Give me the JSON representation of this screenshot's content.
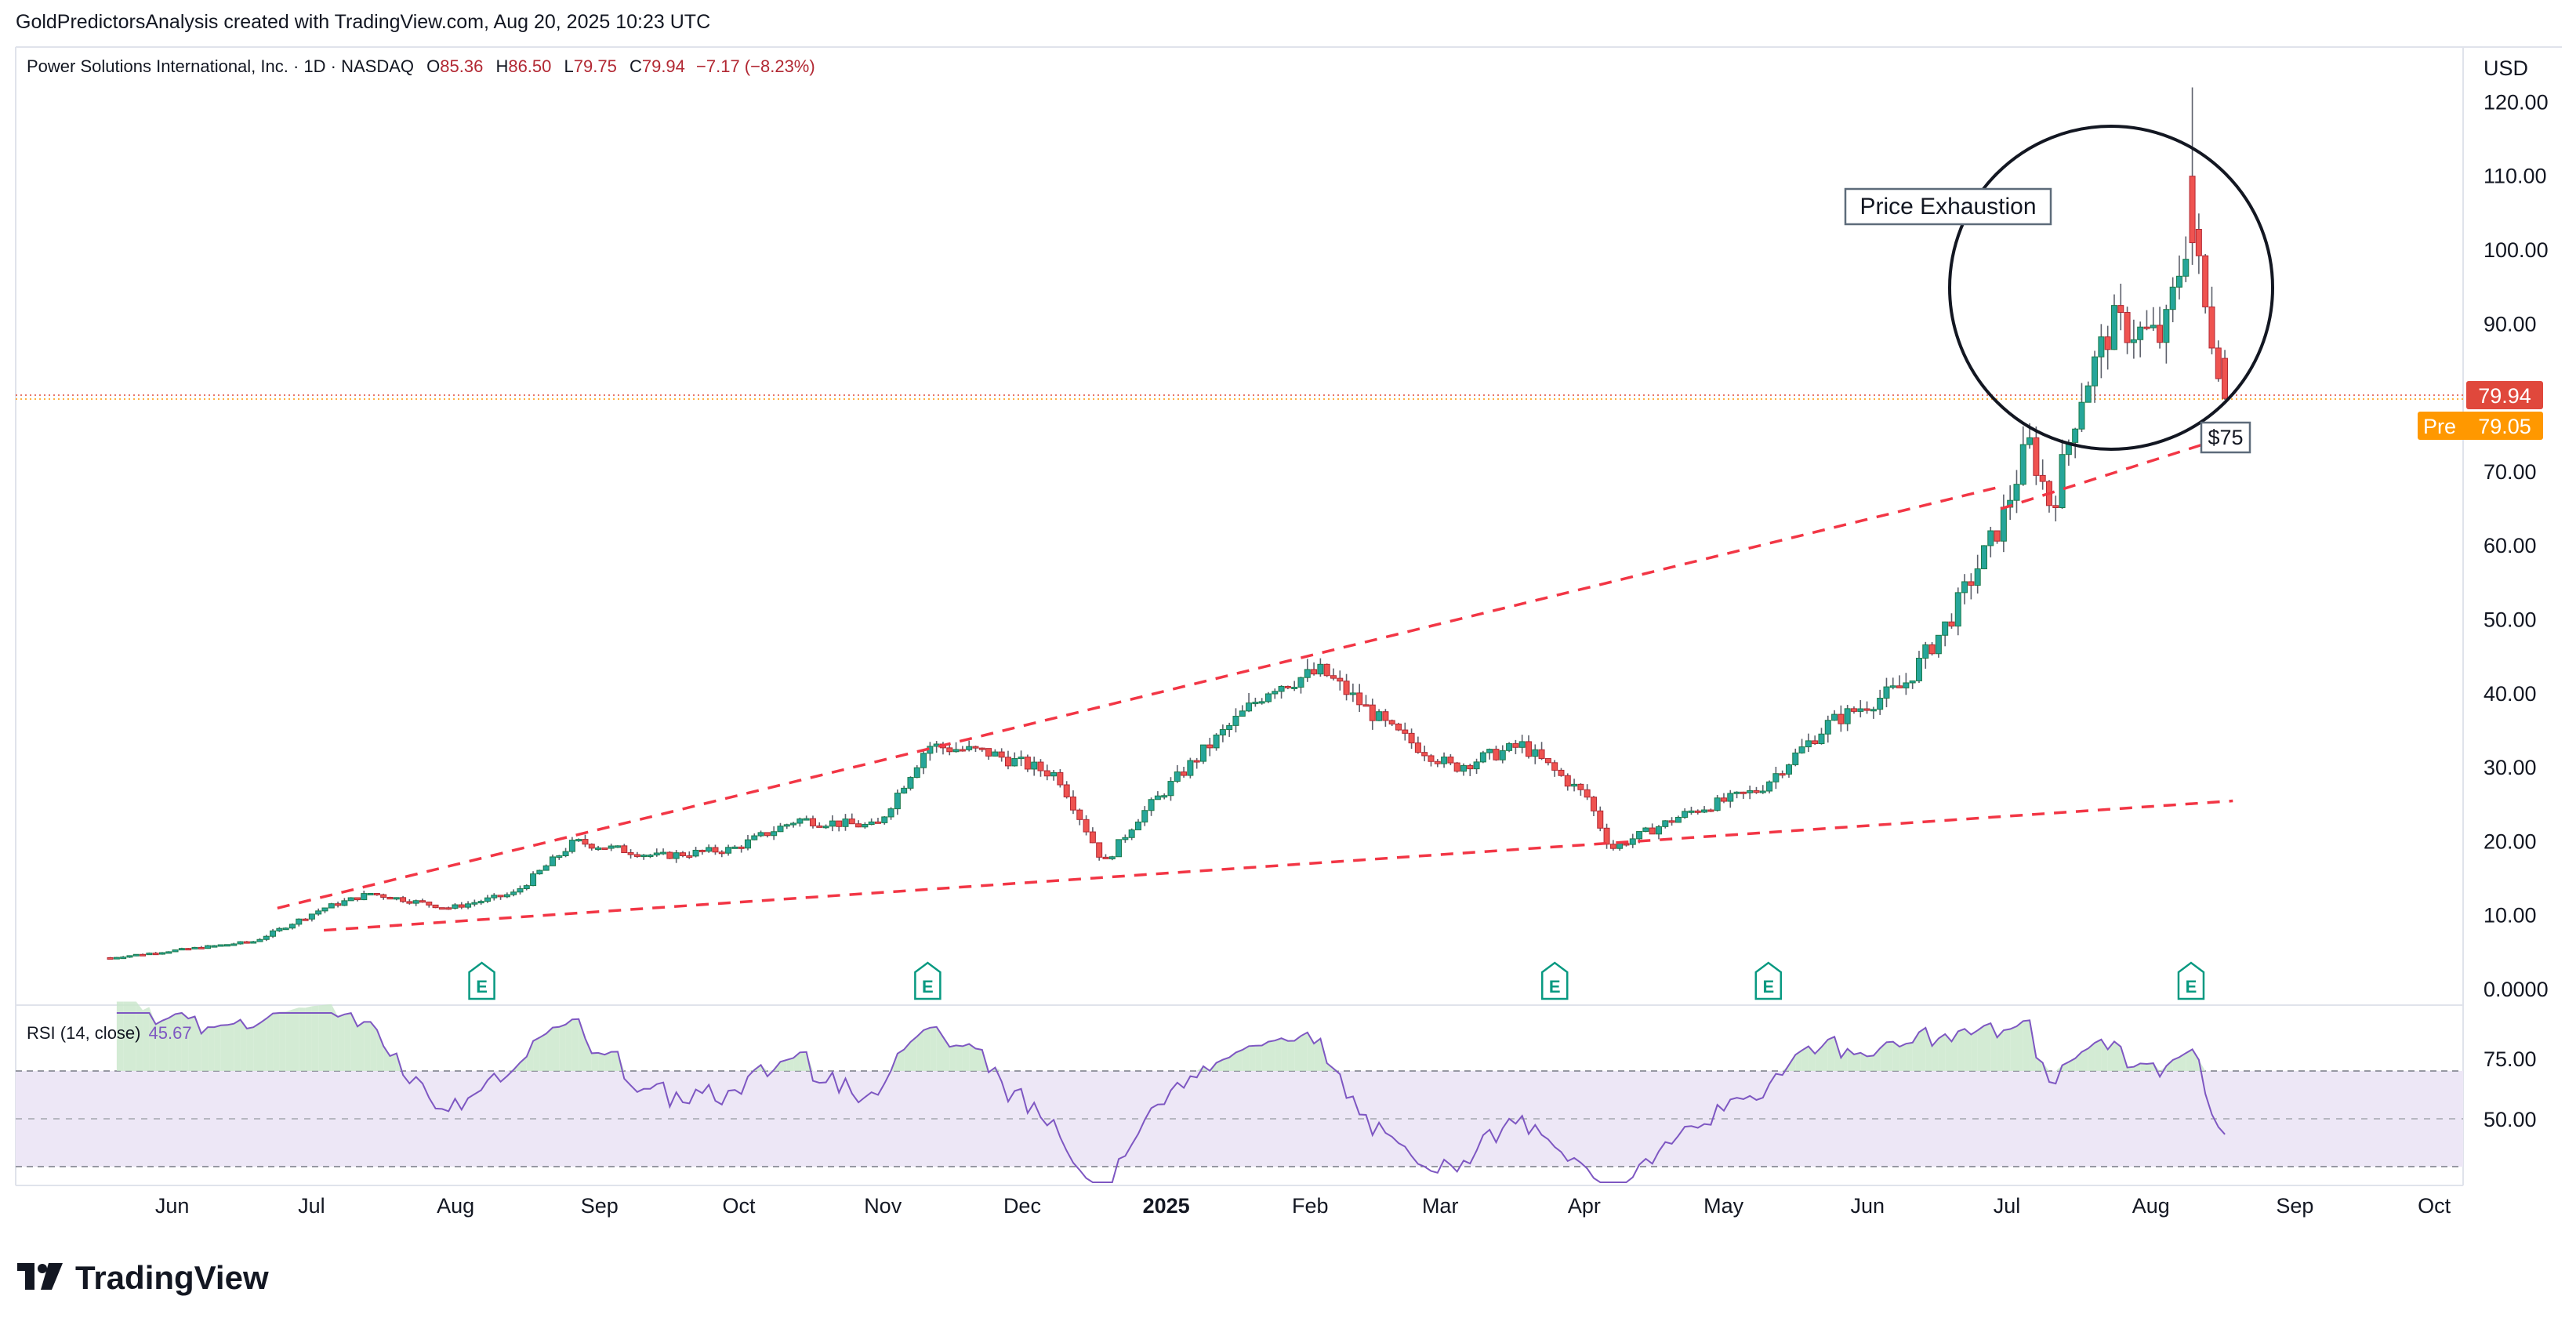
{
  "header": {
    "attribution": "GoldPredictorsAnalysis created with TradingView.com, Aug 20, 2025 10:23 UTC"
  },
  "legend": {
    "symbol": "Power Solutions International, Inc. · 1D · NASDAQ",
    "open_label": "O",
    "open": "85.36",
    "high_label": "H",
    "high": "86.50",
    "low_label": "L",
    "low": "79.75",
    "close_label": "C",
    "close": "79.94",
    "change": "−7.17 (−8.23%)"
  },
  "rsi": {
    "label": "RSI (14, close)",
    "value": "45.67",
    "levels": [
      70,
      50,
      30
    ],
    "tick_labels": [
      "75.00",
      "50.00"
    ]
  },
  "axis": {
    "currency": "USD",
    "price_labels": [
      "120.00",
      "110.00",
      "100.00",
      "90.00",
      "70.00",
      "60.00",
      "50.00",
      "40.00",
      "30.00",
      "20.00",
      "10.00",
      "0.0000"
    ],
    "last_price": "79.94",
    "pre_label": "Pre",
    "pre_price": "79.05"
  },
  "annotations": {
    "callout": "Price Exhaustion",
    "target": "$75",
    "earnings_marker": "E"
  },
  "brand": "TradingView",
  "colors": {
    "up": "#26a69a",
    "up_dark": "#1b7a4a",
    "down": "#ef5350",
    "down_dark": "#b22833",
    "trendline": "#f23645",
    "rsi_line": "#7e57c2",
    "rsi_band": "#ede7f6",
    "last_price_badge": "#e0483c",
    "pre_badge": "#ff9800"
  },
  "chart_data": {
    "type": "candlestick",
    "timeframe": "1D",
    "x_tick_labels": [
      "Jun",
      "Jul",
      "Aug",
      "Sep",
      "Oct",
      "Nov",
      "Dec",
      "2025",
      "Feb",
      "Mar",
      "Apr",
      "May",
      "Jun",
      "Jul",
      "Aug",
      "Sep",
      "Oct"
    ],
    "y_range": [
      0,
      122
    ],
    "approx_close_path": [
      {
        "date": "2024-05-20",
        "close": 4.3
      },
      {
        "date": "2024-06-20",
        "close": 6.5
      },
      {
        "date": "2024-07-05",
        "close": 11
      },
      {
        "date": "2024-07-15",
        "close": 13
      },
      {
        "date": "2024-08-01",
        "close": 11
      },
      {
        "date": "2024-08-15",
        "close": 13
      },
      {
        "date": "2024-08-28",
        "close": 20
      },
      {
        "date": "2024-09-15",
        "close": 18
      },
      {
        "date": "2024-10-01",
        "close": 19
      },
      {
        "date": "2024-10-15",
        "close": 23
      },
      {
        "date": "2024-11-01",
        "close": 22
      },
      {
        "date": "2024-11-12",
        "close": 33
      },
      {
        "date": "2024-11-25",
        "close": 32
      },
      {
        "date": "2024-12-10",
        "close": 29
      },
      {
        "date": "2024-12-20",
        "close": 17
      },
      {
        "date": "2024-12-27",
        "close": 23
      },
      {
        "date": "2025-01-10",
        "close": 32
      },
      {
        "date": "2025-01-25",
        "close": 41
      },
      {
        "date": "2025-02-05",
        "close": 43
      },
      {
        "date": "2025-02-20",
        "close": 35
      },
      {
        "date": "2025-03-05",
        "close": 30
      },
      {
        "date": "2025-03-20",
        "close": 33
      },
      {
        "date": "2025-04-03",
        "close": 26
      },
      {
        "date": "2025-04-08",
        "close": 19
      },
      {
        "date": "2025-04-25",
        "close": 24
      },
      {
        "date": "2025-05-10",
        "close": 27
      },
      {
        "date": "2025-05-25",
        "close": 36
      },
      {
        "date": "2025-06-10",
        "close": 41
      },
      {
        "date": "2025-06-20",
        "close": 50
      },
      {
        "date": "2025-07-01",
        "close": 63
      },
      {
        "date": "2025-07-07",
        "close": 74
      },
      {
        "date": "2025-07-12",
        "close": 65
      },
      {
        "date": "2025-07-18",
        "close": 80
      },
      {
        "date": "2025-07-25",
        "close": 90
      },
      {
        "date": "2025-08-05",
        "close": 88
      },
      {
        "date": "2025-08-11",
        "close": 104
      },
      {
        "date": "2025-08-14",
        "close": 92
      },
      {
        "date": "2025-08-19",
        "close": 79.94
      }
    ],
    "trendlines": [
      {
        "name": "upper",
        "from": {
          "date": "2024-06-25",
          "price": 11
        },
        "to": {
          "date": "2025-07-01",
          "price": 68
        }
      },
      {
        "name": "lower",
        "from": {
          "date": "2024-07-05",
          "price": 8
        },
        "to": {
          "date": "2025-08-20",
          "price": 25.5
        }
      },
      {
        "name": "target",
        "from": {
          "date": "2025-07-01",
          "price": 65
        },
        "to": {
          "date": "2025-08-20",
          "price": 75
        }
      }
    ],
    "earnings_dates": [
      "2024-08-08",
      "2024-11-12",
      "2025-03-27",
      "2025-05-12",
      "2025-08-11"
    ]
  }
}
